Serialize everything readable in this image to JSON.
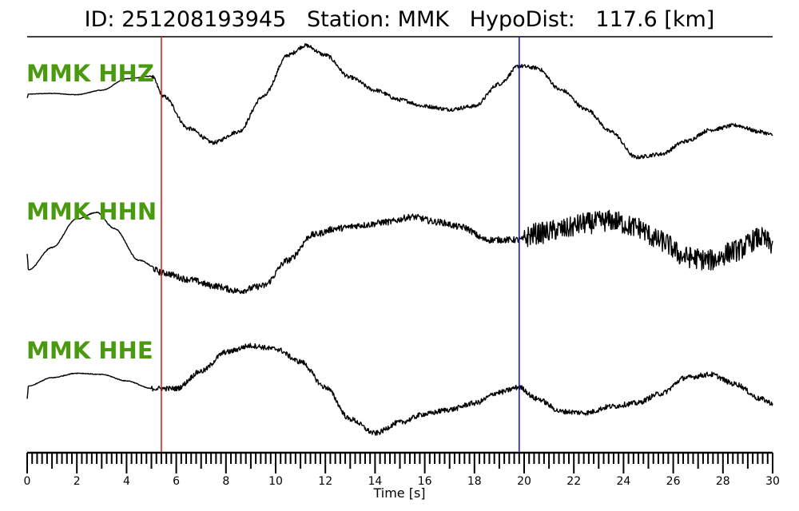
{
  "title": "ID: 251208193945   Station: MMK   HypoDist:   117.6 [km]",
  "chart_data": {
    "type": "line",
    "xlabel": "Time [s]",
    "xlim": [
      0,
      30
    ],
    "xticks": [
      "0",
      "2",
      "4",
      "6",
      "8",
      "10",
      "12",
      "14",
      "16",
      "18",
      "20",
      "22",
      "24",
      "26",
      "28",
      "30"
    ],
    "label_color": "#4a9a0f",
    "p_pick": {
      "x": 5.4,
      "color": "#e0211b"
    },
    "s_pick": {
      "x": 19.8,
      "color": "#1a1acc"
    },
    "series": [
      {
        "name": "MMK HHZ",
        "noise": 0.03,
        "points": [
          [
            0,
            0.08
          ],
          [
            0.05,
            0.14
          ],
          [
            1,
            0.15
          ],
          [
            2,
            0.13
          ],
          [
            3,
            0.2
          ],
          [
            4,
            0.38
          ],
          [
            5,
            0.42
          ],
          [
            5.5,
            0.1
          ],
          [
            6.5,
            -0.4
          ],
          [
            7.5,
            -0.62
          ],
          [
            8.5,
            -0.45
          ],
          [
            9.5,
            0.1
          ],
          [
            10.5,
            0.75
          ],
          [
            11.2,
            0.9
          ],
          [
            12,
            0.75
          ],
          [
            13,
            0.4
          ],
          [
            14,
            0.2
          ],
          [
            15,
            0.05
          ],
          [
            16,
            -0.05
          ],
          [
            17,
            -0.1
          ],
          [
            18,
            -0.05
          ],
          [
            19,
            0.3
          ],
          [
            19.8,
            0.58
          ],
          [
            20.5,
            0.55
          ],
          [
            21.5,
            0.2
          ],
          [
            22.5,
            -0.1
          ],
          [
            23.5,
            -0.45
          ],
          [
            24.5,
            -0.85
          ],
          [
            25.5,
            -0.8
          ],
          [
            26.5,
            -0.6
          ],
          [
            27.5,
            -0.42
          ],
          [
            28.5,
            -0.35
          ],
          [
            29.5,
            -0.45
          ],
          [
            30,
            -0.5
          ]
        ]
      },
      {
        "name": "MMK HHN",
        "noise": 0.05,
        "noise_late": 0.17,
        "points": [
          [
            0,
            -0.2
          ],
          [
            0.05,
            -0.45
          ],
          [
            1,
            -0.1
          ],
          [
            2,
            0.35
          ],
          [
            2.8,
            0.45
          ],
          [
            3.5,
            0.2
          ],
          [
            4.5,
            -0.3
          ],
          [
            5.5,
            -0.5
          ],
          [
            6.5,
            -0.6
          ],
          [
            7.5,
            -0.7
          ],
          [
            8.5,
            -0.78
          ],
          [
            9.5,
            -0.7
          ],
          [
            10.5,
            -0.3
          ],
          [
            11.5,
            0.1
          ],
          [
            12.5,
            0.2
          ],
          [
            13.5,
            0.25
          ],
          [
            14.5,
            0.3
          ],
          [
            15.5,
            0.38
          ],
          [
            16.5,
            0.3
          ],
          [
            17.5,
            0.22
          ],
          [
            18.5,
            0.02
          ],
          [
            19.8,
            0.02
          ],
          [
            20.5,
            0.12
          ],
          [
            21.5,
            0.18
          ],
          [
            22.5,
            0.28
          ],
          [
            23.5,
            0.32
          ],
          [
            24.5,
            0.22
          ],
          [
            25.5,
            0.0
          ],
          [
            26.5,
            -0.25
          ],
          [
            27.5,
            -0.3
          ],
          [
            28.5,
            -0.15
          ],
          [
            29.5,
            0.05
          ],
          [
            30,
            -0.05
          ]
        ]
      },
      {
        "name": "MMK HHE",
        "noise": 0.04,
        "points": [
          [
            0,
            -0.28
          ],
          [
            0.05,
            -0.08
          ],
          [
            1,
            0.05
          ],
          [
            2,
            0.12
          ],
          [
            3,
            0.1
          ],
          [
            4,
            0.0
          ],
          [
            5,
            -0.12
          ],
          [
            6,
            -0.12
          ],
          [
            7,
            0.15
          ],
          [
            8,
            0.45
          ],
          [
            9,
            0.55
          ],
          [
            10,
            0.5
          ],
          [
            11,
            0.3
          ],
          [
            12,
            -0.1
          ],
          [
            13,
            -0.6
          ],
          [
            14,
            -0.82
          ],
          [
            15,
            -0.65
          ],
          [
            16,
            -0.52
          ],
          [
            17,
            -0.45
          ],
          [
            18,
            -0.35
          ],
          [
            19,
            -0.18
          ],
          [
            19.8,
            -0.1
          ],
          [
            20.5,
            -0.28
          ],
          [
            21.5,
            -0.48
          ],
          [
            22.5,
            -0.5
          ],
          [
            23.5,
            -0.4
          ],
          [
            24.5,
            -0.35
          ],
          [
            25.5,
            -0.2
          ],
          [
            26.5,
            0.05
          ],
          [
            27.5,
            0.1
          ],
          [
            28.5,
            -0.05
          ],
          [
            29.5,
            -0.28
          ],
          [
            30,
            -0.35
          ]
        ]
      }
    ]
  }
}
